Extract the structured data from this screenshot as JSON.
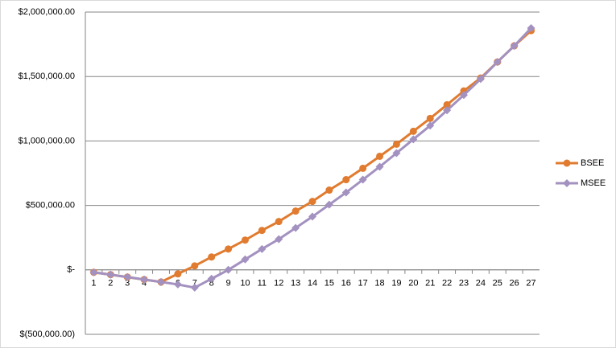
{
  "chart_data": {
    "type": "line",
    "categories": [
      1,
      2,
      3,
      4,
      5,
      6,
      7,
      8,
      9,
      10,
      11,
      12,
      13,
      14,
      15,
      16,
      17,
      18,
      19,
      20,
      21,
      22,
      23,
      24,
      25,
      26,
      27
    ],
    "series": [
      {
        "name": "BSEE",
        "color": "#e07b2f",
        "marker": "circle",
        "values": [
          -19000,
          -37000,
          -56000,
          -75000,
          -94000,
          -31000,
          31000,
          100000,
          162000,
          231000,
          306000,
          375000,
          456000,
          531000,
          619000,
          700000,
          788000,
          881000,
          975000,
          1075000,
          1175000,
          1281000,
          1388000,
          1488000,
          1613000,
          1738000,
          1856000
        ]
      },
      {
        "name": "MSEE",
        "color": "#a391c0",
        "marker": "diamond",
        "values": [
          -19000,
          -37000,
          -56000,
          -75000,
          -94000,
          -113000,
          -138000,
          -69000,
          0,
          81000,
          162000,
          238000,
          325000,
          413000,
          506000,
          600000,
          700000,
          800000,
          906000,
          1013000,
          1119000,
          1238000,
          1356000,
          1481000,
          1613000,
          1738000,
          1875000
        ]
      }
    ],
    "ylim": [
      -500000,
      2000000
    ],
    "yticks": [
      {
        "value": -500000,
        "label": "$(500,000.00)"
      },
      {
        "value": 0,
        "label": "$-"
      },
      {
        "value": 500000,
        "label": "$500,000.00"
      },
      {
        "value": 1000000,
        "label": "$1,000,000.00"
      },
      {
        "value": 1500000,
        "label": "$1,500,000.00"
      },
      {
        "value": 2000000,
        "label": "$2,000,000.00"
      }
    ],
    "grid": true,
    "legend": "right"
  }
}
